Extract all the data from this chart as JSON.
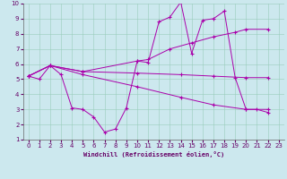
{
  "bg_color": "#cce8ee",
  "line_color": "#aa00aa",
  "grid_color": "#99ccbb",
  "xlabel": "Windchill (Refroidissement éolien,°C)",
  "ylabel_ticks": [
    1,
    2,
    3,
    4,
    5,
    6,
    7,
    8,
    9,
    10
  ],
  "xlabel_ticks": [
    0,
    1,
    2,
    3,
    4,
    5,
    6,
    7,
    8,
    9,
    10,
    11,
    12,
    13,
    14,
    15,
    16,
    17,
    18,
    19,
    20,
    21,
    22,
    23
  ],
  "xlim": [
    -0.5,
    23.5
  ],
  "ylim": [
    1,
    10
  ],
  "lines": [
    {
      "x": [
        0,
        1,
        2,
        3,
        4,
        5,
        6,
        7,
        8,
        9,
        10,
        11,
        12,
        13,
        14,
        15,
        16,
        17,
        18,
        19,
        20,
        21,
        22
      ],
      "y": [
        5.2,
        5.0,
        5.9,
        5.3,
        3.1,
        3.0,
        2.5,
        1.5,
        1.7,
        3.1,
        6.2,
        6.1,
        8.8,
        9.1,
        10.1,
        6.7,
        8.9,
        9.0,
        9.5,
        5.1,
        3.0,
        3.0,
        2.8
      ]
    },
    {
      "x": [
        0,
        2,
        5,
        10,
        11,
        13,
        15,
        17,
        19,
        20,
        22
      ],
      "y": [
        5.2,
        5.9,
        5.5,
        6.2,
        6.3,
        7.0,
        7.4,
        7.8,
        8.1,
        8.3,
        8.3
      ]
    },
    {
      "x": [
        0,
        2,
        5,
        10,
        14,
        17,
        20,
        22
      ],
      "y": [
        5.2,
        5.9,
        5.3,
        4.5,
        3.8,
        3.3,
        3.0,
        3.0
      ]
    },
    {
      "x": [
        0,
        2,
        5,
        10,
        14,
        17,
        20,
        22
      ],
      "y": [
        5.2,
        5.9,
        5.5,
        5.4,
        5.3,
        5.2,
        5.1,
        5.1
      ]
    }
  ],
  "tick_labelsize": 5,
  "xlabel_fontsize": 5,
  "figsize": [
    3.2,
    2.0
  ],
  "dpi": 100
}
